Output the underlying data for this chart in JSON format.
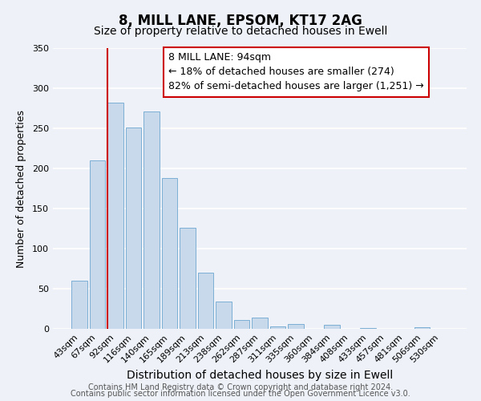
{
  "title": "8, MILL LANE, EPSOM, KT17 2AG",
  "subtitle": "Size of property relative to detached houses in Ewell",
  "xlabel": "Distribution of detached houses by size in Ewell",
  "ylabel": "Number of detached properties",
  "bar_labels": [
    "43sqm",
    "67sqm",
    "92sqm",
    "116sqm",
    "140sqm",
    "165sqm",
    "189sqm",
    "213sqm",
    "238sqm",
    "262sqm",
    "287sqm",
    "311sqm",
    "335sqm",
    "360sqm",
    "384sqm",
    "408sqm",
    "433sqm",
    "457sqm",
    "481sqm",
    "506sqm",
    "530sqm"
  ],
  "bar_values": [
    60,
    210,
    282,
    251,
    271,
    188,
    126,
    70,
    34,
    11,
    14,
    3,
    6,
    0,
    5,
    0,
    1,
    0,
    0,
    2,
    0
  ],
  "bar_color": "#c9d9ec",
  "bar_edge_color": "#7bafd4",
  "vline_color": "#cc0000",
  "vline_index": 2,
  "annotation_text": "8 MILL LANE: 94sqm\n← 18% of detached houses are smaller (274)\n82% of semi-detached houses are larger (1,251) →",
  "annotation_box_color": "#ffffff",
  "annotation_box_edge": "#cc0000",
  "ylim": [
    0,
    350
  ],
  "yticks": [
    0,
    50,
    100,
    150,
    200,
    250,
    300,
    350
  ],
  "footer1": "Contains HM Land Registry data © Crown copyright and database right 2024.",
  "footer2": "Contains public sector information licensed under the Open Government Licence v3.0.",
  "bg_color": "#eef2f8",
  "plot_bg_color": "#eef2f8",
  "grid_color": "#ffffff",
  "title_fontsize": 12,
  "subtitle_fontsize": 10,
  "xlabel_fontsize": 10,
  "ylabel_fontsize": 9,
  "tick_fontsize": 8,
  "annotation_fontsize": 9,
  "footer_fontsize": 7
}
